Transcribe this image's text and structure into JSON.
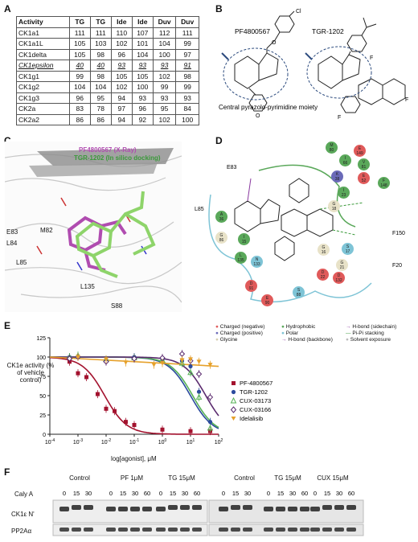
{
  "panels": {
    "a": "A",
    "b": "B",
    "c": "C",
    "d": "D",
    "e": "E",
    "f": "F"
  },
  "table_a": {
    "headers": [
      "Activity",
      "TG",
      "TG",
      "Ide",
      "Ide",
      "Duv",
      "Duv"
    ],
    "rows": [
      [
        "CK1a1",
        "111",
        "111",
        "110",
        "107",
        "112",
        "111"
      ],
      [
        "CK1a1L",
        "105",
        "103",
        "102",
        "101",
        "104",
        "99"
      ],
      [
        "CK1delta",
        "105",
        "98",
        "96",
        "104",
        "100",
        "97"
      ],
      [
        "CK1epsilon",
        "40",
        "40",
        "93",
        "93",
        "93",
        "91"
      ],
      [
        "CK1g1",
        "99",
        "98",
        "105",
        "105",
        "102",
        "98"
      ],
      [
        "CK1g2",
        "104",
        "104",
        "102",
        "100",
        "99",
        "99"
      ],
      [
        "CK1g3",
        "96",
        "95",
        "94",
        "93",
        "93",
        "93"
      ],
      [
        "CK2a",
        "83",
        "78",
        "97",
        "96",
        "95",
        "84"
      ],
      [
        "CK2a2",
        "86",
        "86",
        "94",
        "92",
        "102",
        "100"
      ]
    ]
  },
  "panel_b": {
    "compound1": "PF4800567",
    "compound2": "TGR-1202",
    "caption": "Central pyrazolo-pyrimidine moiety"
  },
  "panel_c": {
    "legend1": "PF4800567 (X-Ray)",
    "legend2": "TGR-1202 (In silico docking)",
    "labels": [
      "E83",
      "L84",
      "M82",
      "L85",
      "L135",
      "S88"
    ]
  },
  "panel_d": {
    "residue_labels": [
      "E83",
      "L85",
      "F150",
      "F20"
    ],
    "legend": [
      "Charged (negative)",
      "Charged (positive)",
      "Glycine",
      "Hydrophobic",
      "Polar",
      "H-bond (backbone)",
      "H-bond (sidechain)",
      "Pi-Pi stacking",
      "Solvent exposure"
    ],
    "colors": {
      "negative": "#e05a5a",
      "positive": "#6a6ab8",
      "glycine": "#e8e2c8",
      "hydrophobic": "#5aa85a",
      "polar": "#7ec4d6",
      "hbond": "#8a3aa0",
      "pipi": "#3a9a3a"
    }
  },
  "chart_data": {
    "type": "line",
    "xlabel": "log[agonist], μM",
    "ylabel": "CK1e activity (% of vehicle control)",
    "xscale": "log",
    "xlim": [
      0.0001,
      100
    ],
    "ylim": [
      0,
      125
    ],
    "xticks": [
      "10^-4",
      "10^-3",
      "10^-2",
      "10^-1",
      "10^0",
      "10^1",
      "10^2"
    ],
    "yticks": [
      0,
      25,
      50,
      75,
      100,
      125
    ],
    "series": [
      {
        "name": "PF-4800567",
        "color": "#a3122e",
        "marker": "square",
        "ic50": 0.0089,
        "x": [
          0.0005,
          0.001,
          0.002,
          0.005,
          0.01,
          0.02,
          0.05,
          0.1,
          1,
          10,
          50
        ],
        "y": [
          94,
          79,
          74,
          52,
          33,
          30,
          16,
          12,
          6,
          4,
          4
        ]
      },
      {
        "name": "TGR-1202",
        "color": "#2c4b9e",
        "marker": "circle",
        "ic50": 10,
        "x": [
          0.0005,
          0.001,
          0.01,
          0.1,
          1,
          5,
          10,
          20,
          50
        ],
        "y": [
          100,
          100,
          96,
          100,
          97,
          95,
          88,
          55,
          16
        ]
      },
      {
        "name": "CUX-03173",
        "color": "#56b256",
        "marker": "triangle",
        "ic50": 12,
        "x": [
          0.0005,
          0.001,
          0.01,
          0.1,
          1,
          5,
          10,
          20,
          50
        ],
        "y": [
          100,
          102,
          97,
          99,
          96,
          92,
          80,
          48,
          8
        ]
      },
      {
        "name": "CUX-03166",
        "color": "#5a2a6e",
        "marker": "diamond",
        "ic50": 35,
        "x": [
          0.0005,
          0.001,
          0.01,
          0.1,
          1,
          5,
          10,
          20,
          50
        ],
        "y": [
          98,
          100,
          94,
          98,
          99,
          104,
          95,
          78,
          48
        ]
      },
      {
        "name": "Idelalisib",
        "color": "#e6a12b",
        "marker": "triangle-down",
        "ic50": null,
        "x": [
          0.001,
          0.01,
          0.05,
          0.5,
          1,
          5,
          10,
          20,
          50
        ],
        "y": [
          100,
          97,
          93,
          90,
          92,
          96,
          97,
          94,
          90
        ]
      }
    ]
  },
  "panel_f": {
    "groups_left": [
      "Control",
      "PF 1μM",
      "TG 15μM"
    ],
    "groups_right": [
      "Control",
      "TG 15μM",
      "CUX 15μM"
    ],
    "row_label": "Caly A",
    "times": [
      "0",
      "15",
      "30",
      "60"
    ],
    "times_short": [
      "0",
      "15",
      "30"
    ],
    "bands": [
      "CK1ε N'",
      "PP2Aα"
    ]
  }
}
